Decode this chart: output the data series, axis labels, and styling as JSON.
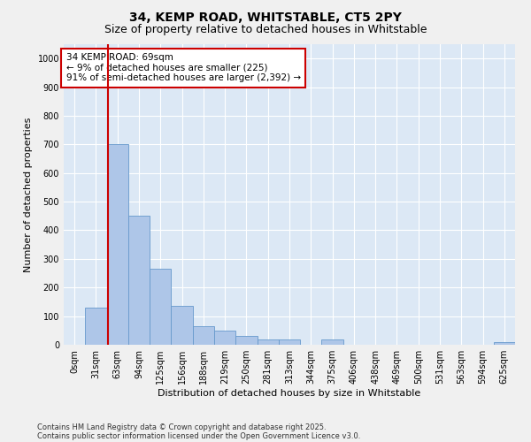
{
  "title1": "34, KEMP ROAD, WHITSTABLE, CT5 2PY",
  "title2": "Size of property relative to detached houses in Whitstable",
  "xlabel": "Distribution of detached houses by size in Whitstable",
  "ylabel": "Number of detached properties",
  "bar_labels": [
    "0sqm",
    "31sqm",
    "63sqm",
    "94sqm",
    "125sqm",
    "156sqm",
    "188sqm",
    "219sqm",
    "250sqm",
    "281sqm",
    "313sqm",
    "344sqm",
    "375sqm",
    "406sqm",
    "438sqm",
    "469sqm",
    "500sqm",
    "531sqm",
    "563sqm",
    "594sqm",
    "625sqm"
  ],
  "bar_values": [
    0,
    130,
    700,
    450,
    265,
    135,
    65,
    50,
    30,
    20,
    20,
    0,
    20,
    0,
    0,
    0,
    0,
    0,
    0,
    0,
    10
  ],
  "bar_color": "#aec6e8",
  "bar_edge_color": "#6699cc",
  "vline_color": "#cc0000",
  "vline_x": 1.575,
  "annotation_text": "34 KEMP ROAD: 69sqm\n← 9% of detached houses are smaller (225)\n91% of semi-detached houses are larger (2,392) →",
  "annotation_box_color": "#ffffff",
  "annotation_border_color": "#cc0000",
  "ylim": [
    0,
    1050
  ],
  "yticks": [
    0,
    100,
    200,
    300,
    400,
    500,
    600,
    700,
    800,
    900,
    1000
  ],
  "plot_bg": "#dce8f5",
  "fig_bg": "#f0f0f0",
  "footnote1": "Contains HM Land Registry data © Crown copyright and database right 2025.",
  "footnote2": "Contains public sector information licensed under the Open Government Licence v3.0.",
  "title_fontsize": 10,
  "subtitle_fontsize": 9,
  "axis_label_fontsize": 8,
  "tick_fontsize": 7,
  "footnote_fontsize": 6
}
